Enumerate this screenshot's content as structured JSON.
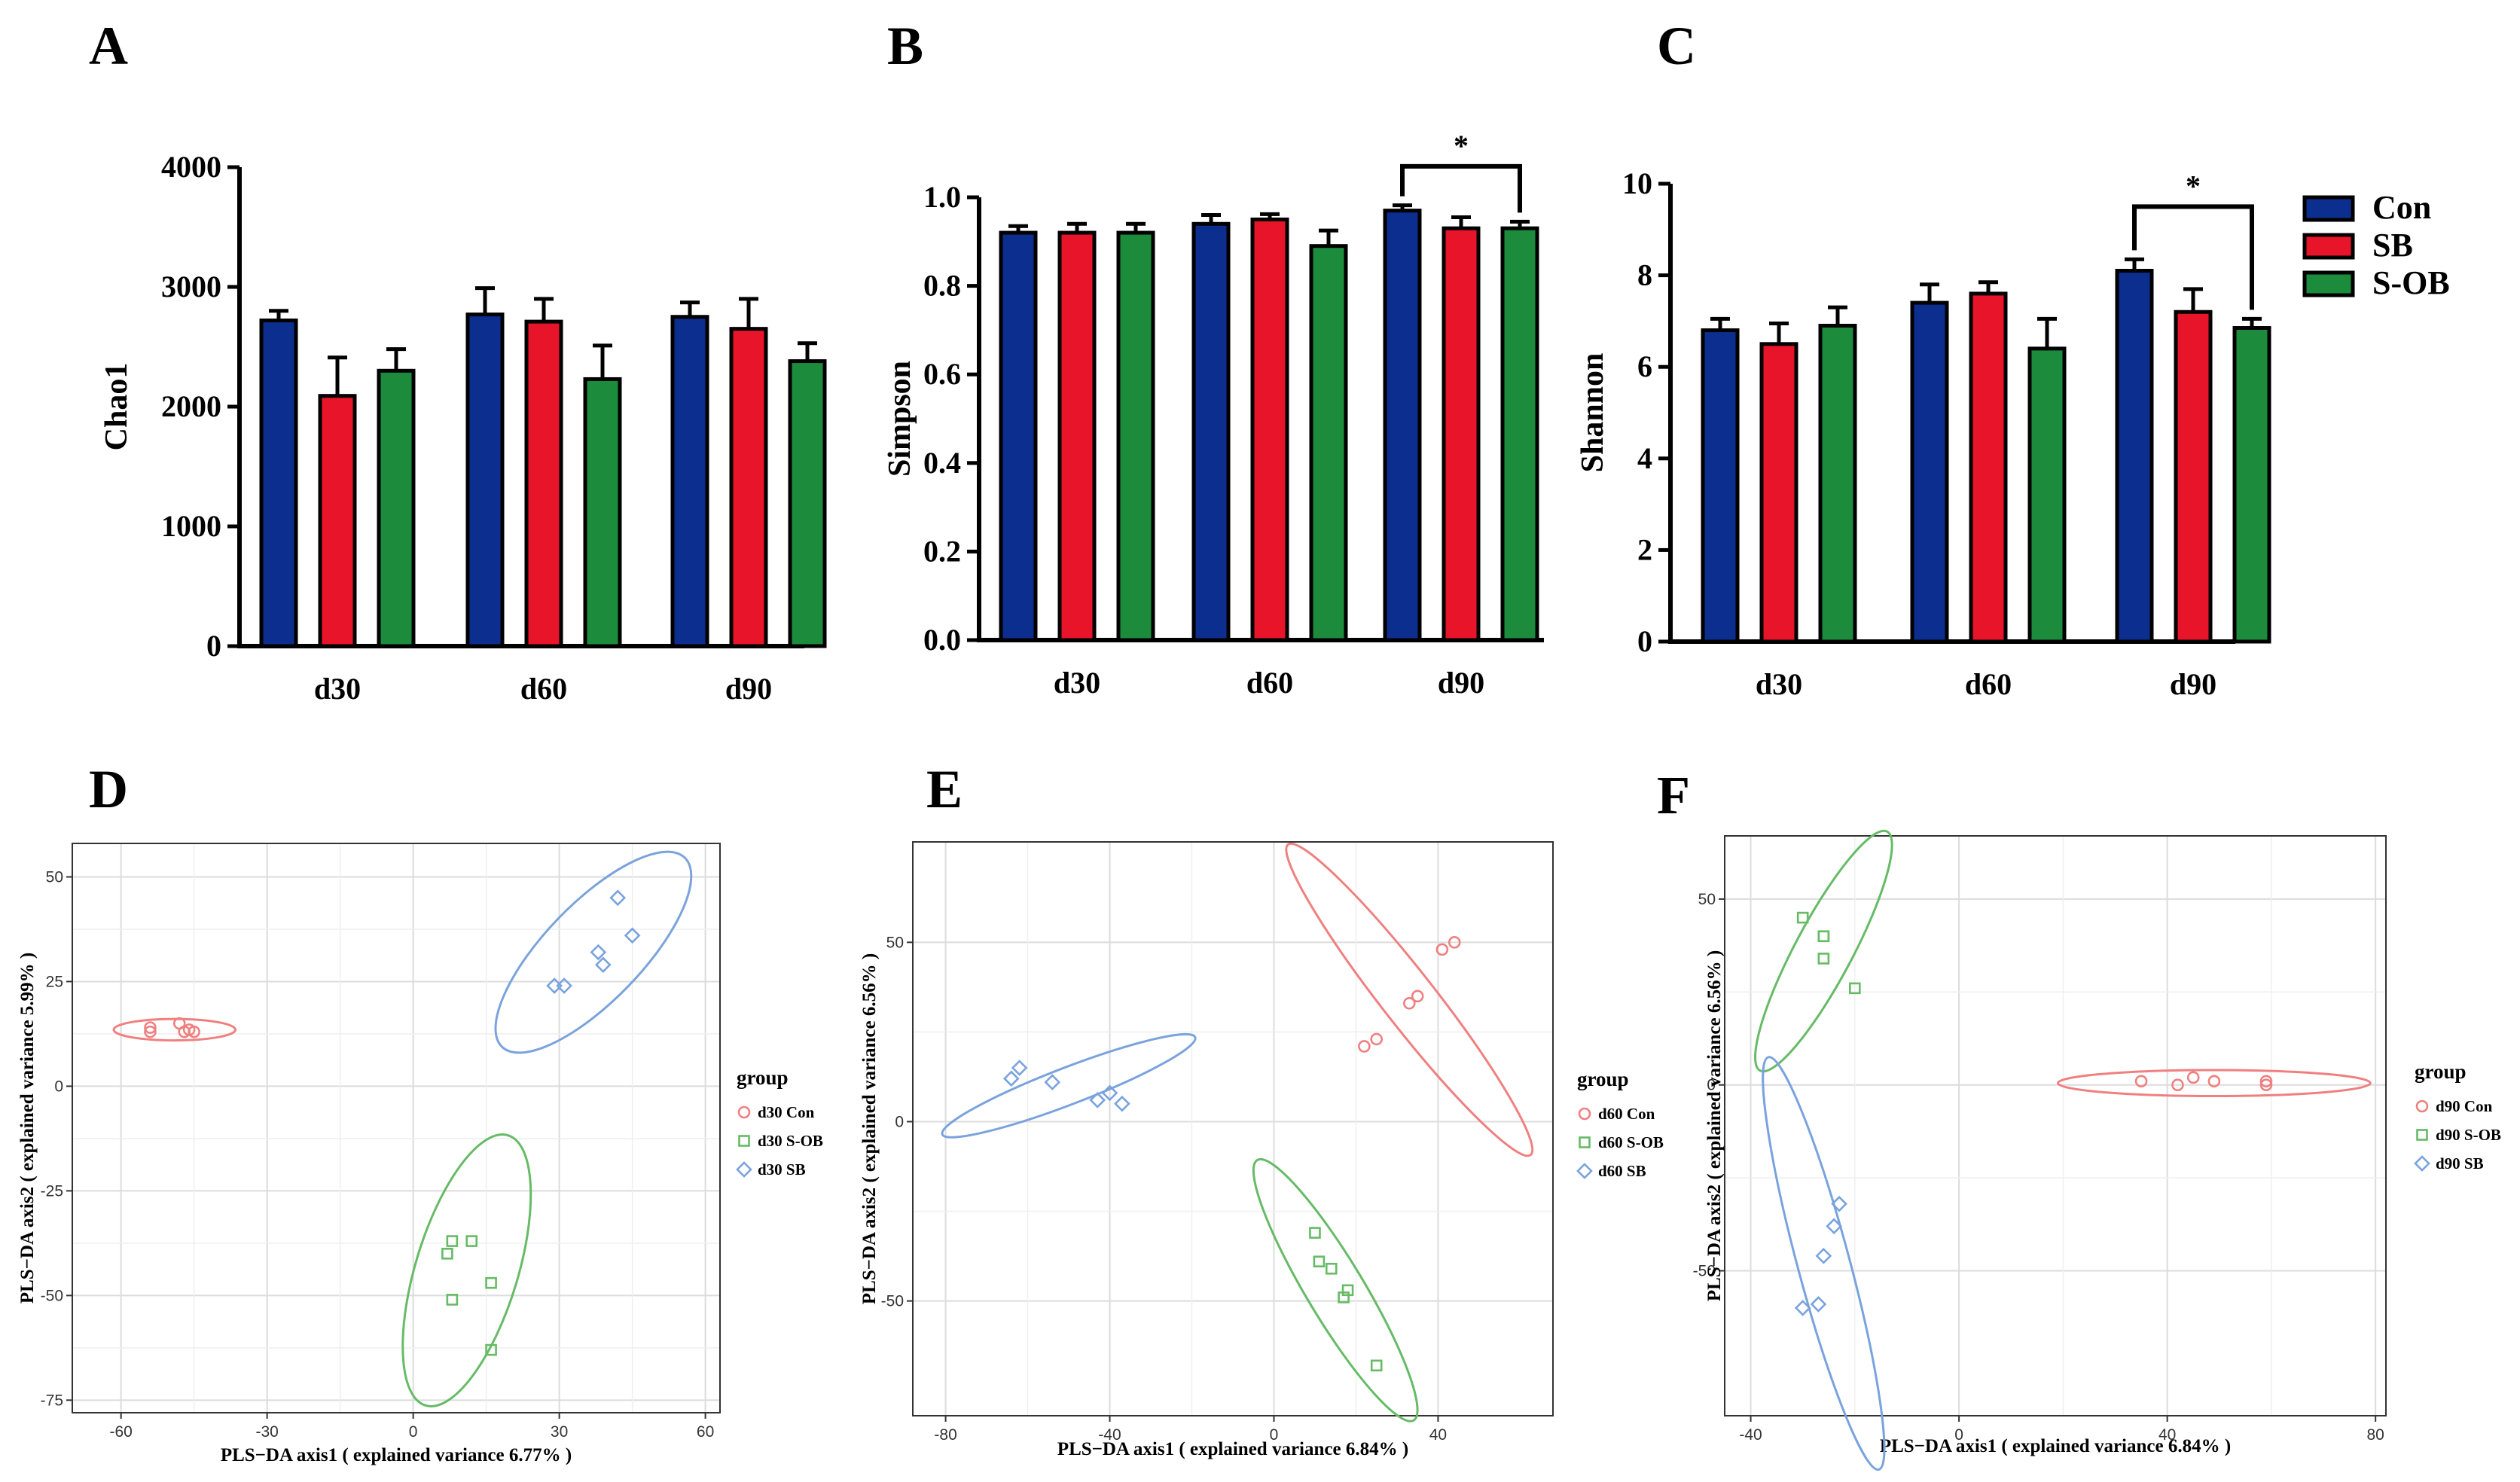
{
  "panel_letters": [
    "A",
    "B",
    "C",
    "D",
    "E",
    "F"
  ],
  "colors": {
    "Con": "#0c2e8f",
    "SB": "#e8142a",
    "S-OB": "#1c8c3c",
    "red": "#f08080",
    "green": "#66bb66",
    "blue": "#7aa3dd"
  },
  "legend_bars": [
    {
      "label": "Con",
      "color": "#0c2e8f"
    },
    {
      "label": "SB",
      "color": "#e8142a"
    },
    {
      "label": "S-OB",
      "color": "#1c8c3c"
    }
  ],
  "chart_data": [
    {
      "panel": "A",
      "type": "bar",
      "ylabel": "Chao1",
      "xlabel": "",
      "categories": [
        "d30",
        "d60",
        "d90"
      ],
      "ylim": [
        0,
        4000
      ],
      "yticks": [
        0,
        1000,
        2000,
        3000,
        4000
      ],
      "ytick_labels": [
        "0",
        "1000",
        "2000",
        "3000",
        "4000"
      ],
      "series": [
        {
          "name": "Con",
          "values": [
            2720,
            2770,
            2750
          ],
          "errors": [
            80,
            220,
            120
          ]
        },
        {
          "name": "SB",
          "values": [
            2090,
            2710,
            2650
          ],
          "errors": [
            320,
            190,
            250
          ]
        },
        {
          "name": "S-OB",
          "values": [
            2300,
            2230,
            2380
          ],
          "errors": [
            180,
            280,
            150
          ]
        }
      ],
      "significance": []
    },
    {
      "panel": "B",
      "type": "bar",
      "ylabel": "Simpson",
      "xlabel": "",
      "categories": [
        "d30",
        "d60",
        "d90"
      ],
      "ylim": [
        0,
        1.0
      ],
      "yticks": [
        0,
        0.2,
        0.4,
        0.6,
        0.8,
        1.0
      ],
      "ytick_labels": [
        "0.0",
        "0.2",
        "0.4",
        "0.6",
        "0.8",
        "1.0"
      ],
      "series": [
        {
          "name": "Con",
          "values": [
            0.92,
            0.94,
            0.97
          ],
          "errors": [
            0.015,
            0.02,
            0.012
          ]
        },
        {
          "name": "SB",
          "values": [
            0.92,
            0.95,
            0.93
          ],
          "errors": [
            0.02,
            0.012,
            0.025
          ]
        },
        {
          "name": "S-OB",
          "values": [
            0.92,
            0.89,
            0.93
          ],
          "errors": [
            0.02,
            0.035,
            0.015
          ]
        }
      ],
      "significance": [
        {
          "category": "d90",
          "from": "Con",
          "to": "S-OB",
          "label": "*",
          "y": 1.07
        }
      ]
    },
    {
      "panel": "C",
      "type": "bar",
      "ylabel": "Shannon",
      "xlabel": "",
      "categories": [
        "d30",
        "d60",
        "d90"
      ],
      "ylim": [
        0,
        10
      ],
      "yticks": [
        0,
        2,
        4,
        6,
        8,
        10
      ],
      "ytick_labels": [
        "0",
        "2",
        "4",
        "6",
        "8",
        "10"
      ],
      "series": [
        {
          "name": "Con",
          "values": [
            6.8,
            7.4,
            8.1
          ],
          "errors": [
            0.25,
            0.4,
            0.25
          ]
        },
        {
          "name": "SB",
          "values": [
            6.5,
            7.6,
            7.2
          ],
          "errors": [
            0.45,
            0.25,
            0.5
          ]
        },
        {
          "name": "S-OB",
          "values": [
            6.9,
            6.4,
            6.85
          ],
          "errors": [
            0.4,
            0.65,
            0.2
          ]
        }
      ],
      "significance": [
        {
          "category": "d90",
          "from": "Con",
          "to": "S-OB",
          "label": "*",
          "y": 9.5
        }
      ]
    },
    {
      "panel": "D",
      "type": "scatter",
      "xlabel": "PLS−DA axis1 ( explained variance 6.77% )",
      "ylabel": "PLS−DA axis2 ( explained variance 5.99% )",
      "xlim": [
        -70,
        63
      ],
      "ylim": [
        -78,
        58
      ],
      "xticks": [
        -60,
        -30,
        0,
        30,
        60
      ],
      "xtick_labels": [
        "-60",
        "-30",
        "0",
        "30",
        "60"
      ],
      "yticks": [
        -75,
        -50,
        -25,
        0,
        25,
        50
      ],
      "ytick_labels": [
        "-75",
        "-50",
        "-25",
        "0",
        "25",
        "50"
      ],
      "legend_title": "group",
      "series": [
        {
          "name": "d30 Con",
          "color": "red",
          "marker": "circle",
          "points": [
            [
              -54,
              13
            ],
            [
              -54,
              14
            ],
            [
              -48,
              15
            ],
            [
              -47,
              13
            ],
            [
              -46,
              13.5
            ],
            [
              -45,
              13
            ]
          ],
          "ellipse": {
            "cx": -49,
            "cy": 13.5,
            "rx": 12.5,
            "ry": 2.2,
            "angle": 0
          }
        },
        {
          "name": "d30 S-OB",
          "color": "green",
          "marker": "square",
          "points": [
            [
              8,
              -37
            ],
            [
              7,
              -40
            ],
            [
              12,
              -37
            ],
            [
              16,
              -47
            ],
            [
              8,
              -51
            ],
            [
              16,
              -63
            ]
          ],
          "ellipse": {
            "cx": 11,
            "cy": -44,
            "rx": 29,
            "ry": 10.5,
            "angle": 73
          }
        },
        {
          "name": "d30 SB",
          "color": "blue",
          "marker": "diamond",
          "points": [
            [
              42,
              45
            ],
            [
              45,
              36
            ],
            [
              38,
              32
            ],
            [
              39,
              29
            ],
            [
              29,
              24
            ],
            [
              31,
              24
            ]
          ],
          "ellipse": {
            "cx": 37,
            "cy": 32,
            "rx": 27,
            "ry": 10,
            "angle": 46
          }
        }
      ]
    },
    {
      "panel": "E",
      "type": "scatter",
      "xlabel": "PLS−DA axis1 ( explained variance 6.84% )",
      "ylabel": "PLS−DA axis2 ( explained variance 6.56% )",
      "xlim": [
        -88,
        68
      ],
      "ylim": [
        -82,
        78
      ],
      "xticks": [
        -80,
        -40,
        0,
        40
      ],
      "xtick_labels": [
        "-80",
        "-40",
        "0",
        "40"
      ],
      "yticks": [
        -50,
        0,
        50
      ],
      "ytick_labels": [
        "-50",
        "0",
        "50"
      ],
      "legend_title": "group",
      "series": [
        {
          "name": "d60 Con",
          "color": "red",
          "marker": "circle",
          "points": [
            [
              44,
              50
            ],
            [
              41,
              48
            ],
            [
              35,
              35
            ],
            [
              33,
              33
            ],
            [
              25,
              23
            ],
            [
              22,
              21
            ]
          ],
          "ellipse": {
            "cx": 33,
            "cy": 34,
            "rx": 48,
            "ry": 6.5,
            "angle": -52
          }
        },
        {
          "name": "d60 S-OB",
          "color": "green",
          "marker": "square",
          "points": [
            [
              10,
              -31
            ],
            [
              11,
              -39
            ],
            [
              14,
              -41
            ],
            [
              17,
              -49
            ],
            [
              18,
              -47
            ],
            [
              25,
              -68
            ]
          ],
          "ellipse": {
            "cx": 15,
            "cy": -47,
            "rx": 37,
            "ry": 7,
            "angle": -59
          }
        },
        {
          "name": "d60 SB",
          "color": "blue",
          "marker": "diamond",
          "points": [
            [
              -62,
              15
            ],
            [
              -64,
              12
            ],
            [
              -54,
              11
            ],
            [
              -43,
              6
            ],
            [
              -40,
              8
            ],
            [
              -37,
              5
            ]
          ],
          "ellipse": {
            "cx": -50,
            "cy": 10,
            "rx": 33,
            "ry": 4.5,
            "angle": 21
          }
        }
      ]
    },
    {
      "panel": "F",
      "type": "scatter",
      "xlabel": "PLS−DA axis1 ( explained variance 6.84% )",
      "ylabel": "PLS−DA axis2 ( explained variance 6.56% )",
      "xlim": [
        -45,
        82
      ],
      "ylim": [
        -89,
        67
      ],
      "xticks": [
        -40,
        0,
        40,
        80
      ],
      "xtick_labels": [
        "-40",
        "0",
        "40",
        "80"
      ],
      "yticks": [
        -50,
        0,
        50
      ],
      "ytick_labels": [
        "-50",
        "0",
        "50"
      ],
      "legend_title": "group",
      "series": [
        {
          "name": "d90 Con",
          "color": "red",
          "marker": "circle",
          "points": [
            [
              35,
              1
            ],
            [
              42,
              0
            ],
            [
              45,
              2
            ],
            [
              49,
              1
            ],
            [
              59,
              0
            ],
            [
              59,
              1
            ]
          ],
          "ellipse": {
            "cx": 49,
            "cy": 0.5,
            "rx": 30,
            "ry": 2.5,
            "angle": 0
          }
        },
        {
          "name": "d90 S-OB",
          "color": "green",
          "marker": "square",
          "points": [
            [
              -30,
              45
            ],
            [
              -26,
              40
            ],
            [
              -26,
              40
            ],
            [
              -26,
              34
            ],
            [
              -20,
              26
            ]
          ],
          "ellipse": {
            "cx": -26,
            "cy": 36,
            "rx": 26,
            "ry": 5.5,
            "angle": 62
          }
        },
        {
          "name": "d90 SB",
          "color": "blue",
          "marker": "diamond",
          "points": [
            [
              -23,
              -32
            ],
            [
              -24,
              -38
            ],
            [
              -26,
              -46
            ],
            [
              -27,
              -59
            ],
            [
              -30,
              -60
            ]
          ],
          "ellipse": {
            "cx": -26,
            "cy": -48,
            "rx": 41,
            "ry": 5,
            "angle": -75
          }
        }
      ]
    }
  ]
}
